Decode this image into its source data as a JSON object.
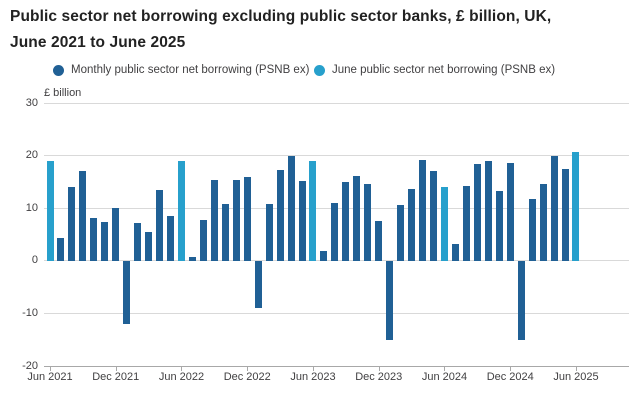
{
  "title": {
    "line1": "Public sector net borrowing excluding public sector banks, £ billion, UK,",
    "line2": "June 2021 to June 2025"
  },
  "legend": {
    "monthly": {
      "label": "Monthly public sector net borrowing (PSNB ex)",
      "color": "#206095"
    },
    "june": {
      "label": "June public sector net borrowing (PSNB ex)",
      "color": "#27a0cc"
    }
  },
  "chart_data": {
    "type": "bar",
    "title": "Public sector net borrowing excluding public sector banks, £ billion, UK, June 2021 to June 2025",
    "xlabel": "",
    "ylabel": "£ billion",
    "ylim": [
      -20,
      30
    ],
    "grid": "horizontal",
    "legend_position": "top",
    "y_ticks": [
      30,
      20,
      10,
      0,
      -10,
      -20
    ],
    "x_tick_labels": [
      "Jun 2021",
      "Dec 2021",
      "Jun 2022",
      "Dec 2022",
      "Jun 2023",
      "Dec 2023",
      "Jun 2024",
      "Dec 2024",
      "Jun 2025"
    ],
    "categories": [
      "Jun 2021",
      "Jul 2021",
      "Aug 2021",
      "Sep 2021",
      "Oct 2021",
      "Nov 2021",
      "Dec 2021",
      "Jan 2022",
      "Feb 2022",
      "Mar 2022",
      "Apr 2022",
      "May 2022",
      "Jun 2022",
      "Jul 2022",
      "Aug 2022",
      "Sep 2022",
      "Oct 2022",
      "Nov 2022",
      "Dec 2022",
      "Jan 2023",
      "Feb 2023",
      "Mar 2023",
      "Apr 2023",
      "May 2023",
      "Jun 2023",
      "Jul 2023",
      "Aug 2023",
      "Sep 2023",
      "Oct 2023",
      "Nov 2023",
      "Dec 2023",
      "Jan 2024",
      "Feb 2024",
      "Mar 2024",
      "Apr 2024",
      "May 2024",
      "Jun 2024",
      "Jul 2024",
      "Aug 2024",
      "Sep 2024",
      "Oct 2024",
      "Nov 2024",
      "Dec 2024",
      "Jan 2025",
      "Feb 2025",
      "Mar 2025",
      "Apr 2025",
      "May 2025",
      "Jun 2025"
    ],
    "values": [
      19.0,
      4.4,
      14.0,
      17.0,
      8.1,
      7.3,
      10.0,
      -12.0,
      7.2,
      5.5,
      13.4,
      8.5,
      18.9,
      0.8,
      7.7,
      15.3,
      10.8,
      15.4,
      15.9,
      -9.0,
      10.8,
      17.2,
      19.9,
      15.1,
      18.9,
      1.9,
      11.0,
      15.0,
      16.2,
      14.6,
      7.6,
      -15.0,
      10.6,
      13.6,
      19.1,
      17.1,
      14.1,
      3.2,
      14.3,
      18.4,
      19.0,
      13.2,
      18.5,
      -15.0,
      11.8,
      14.6,
      19.9,
      17.4,
      20.7
    ],
    "june_highlight_indices": [
      0,
      12,
      24,
      36,
      48
    ],
    "colors": {
      "monthly": "#206095",
      "june": "#27a0cc"
    }
  }
}
